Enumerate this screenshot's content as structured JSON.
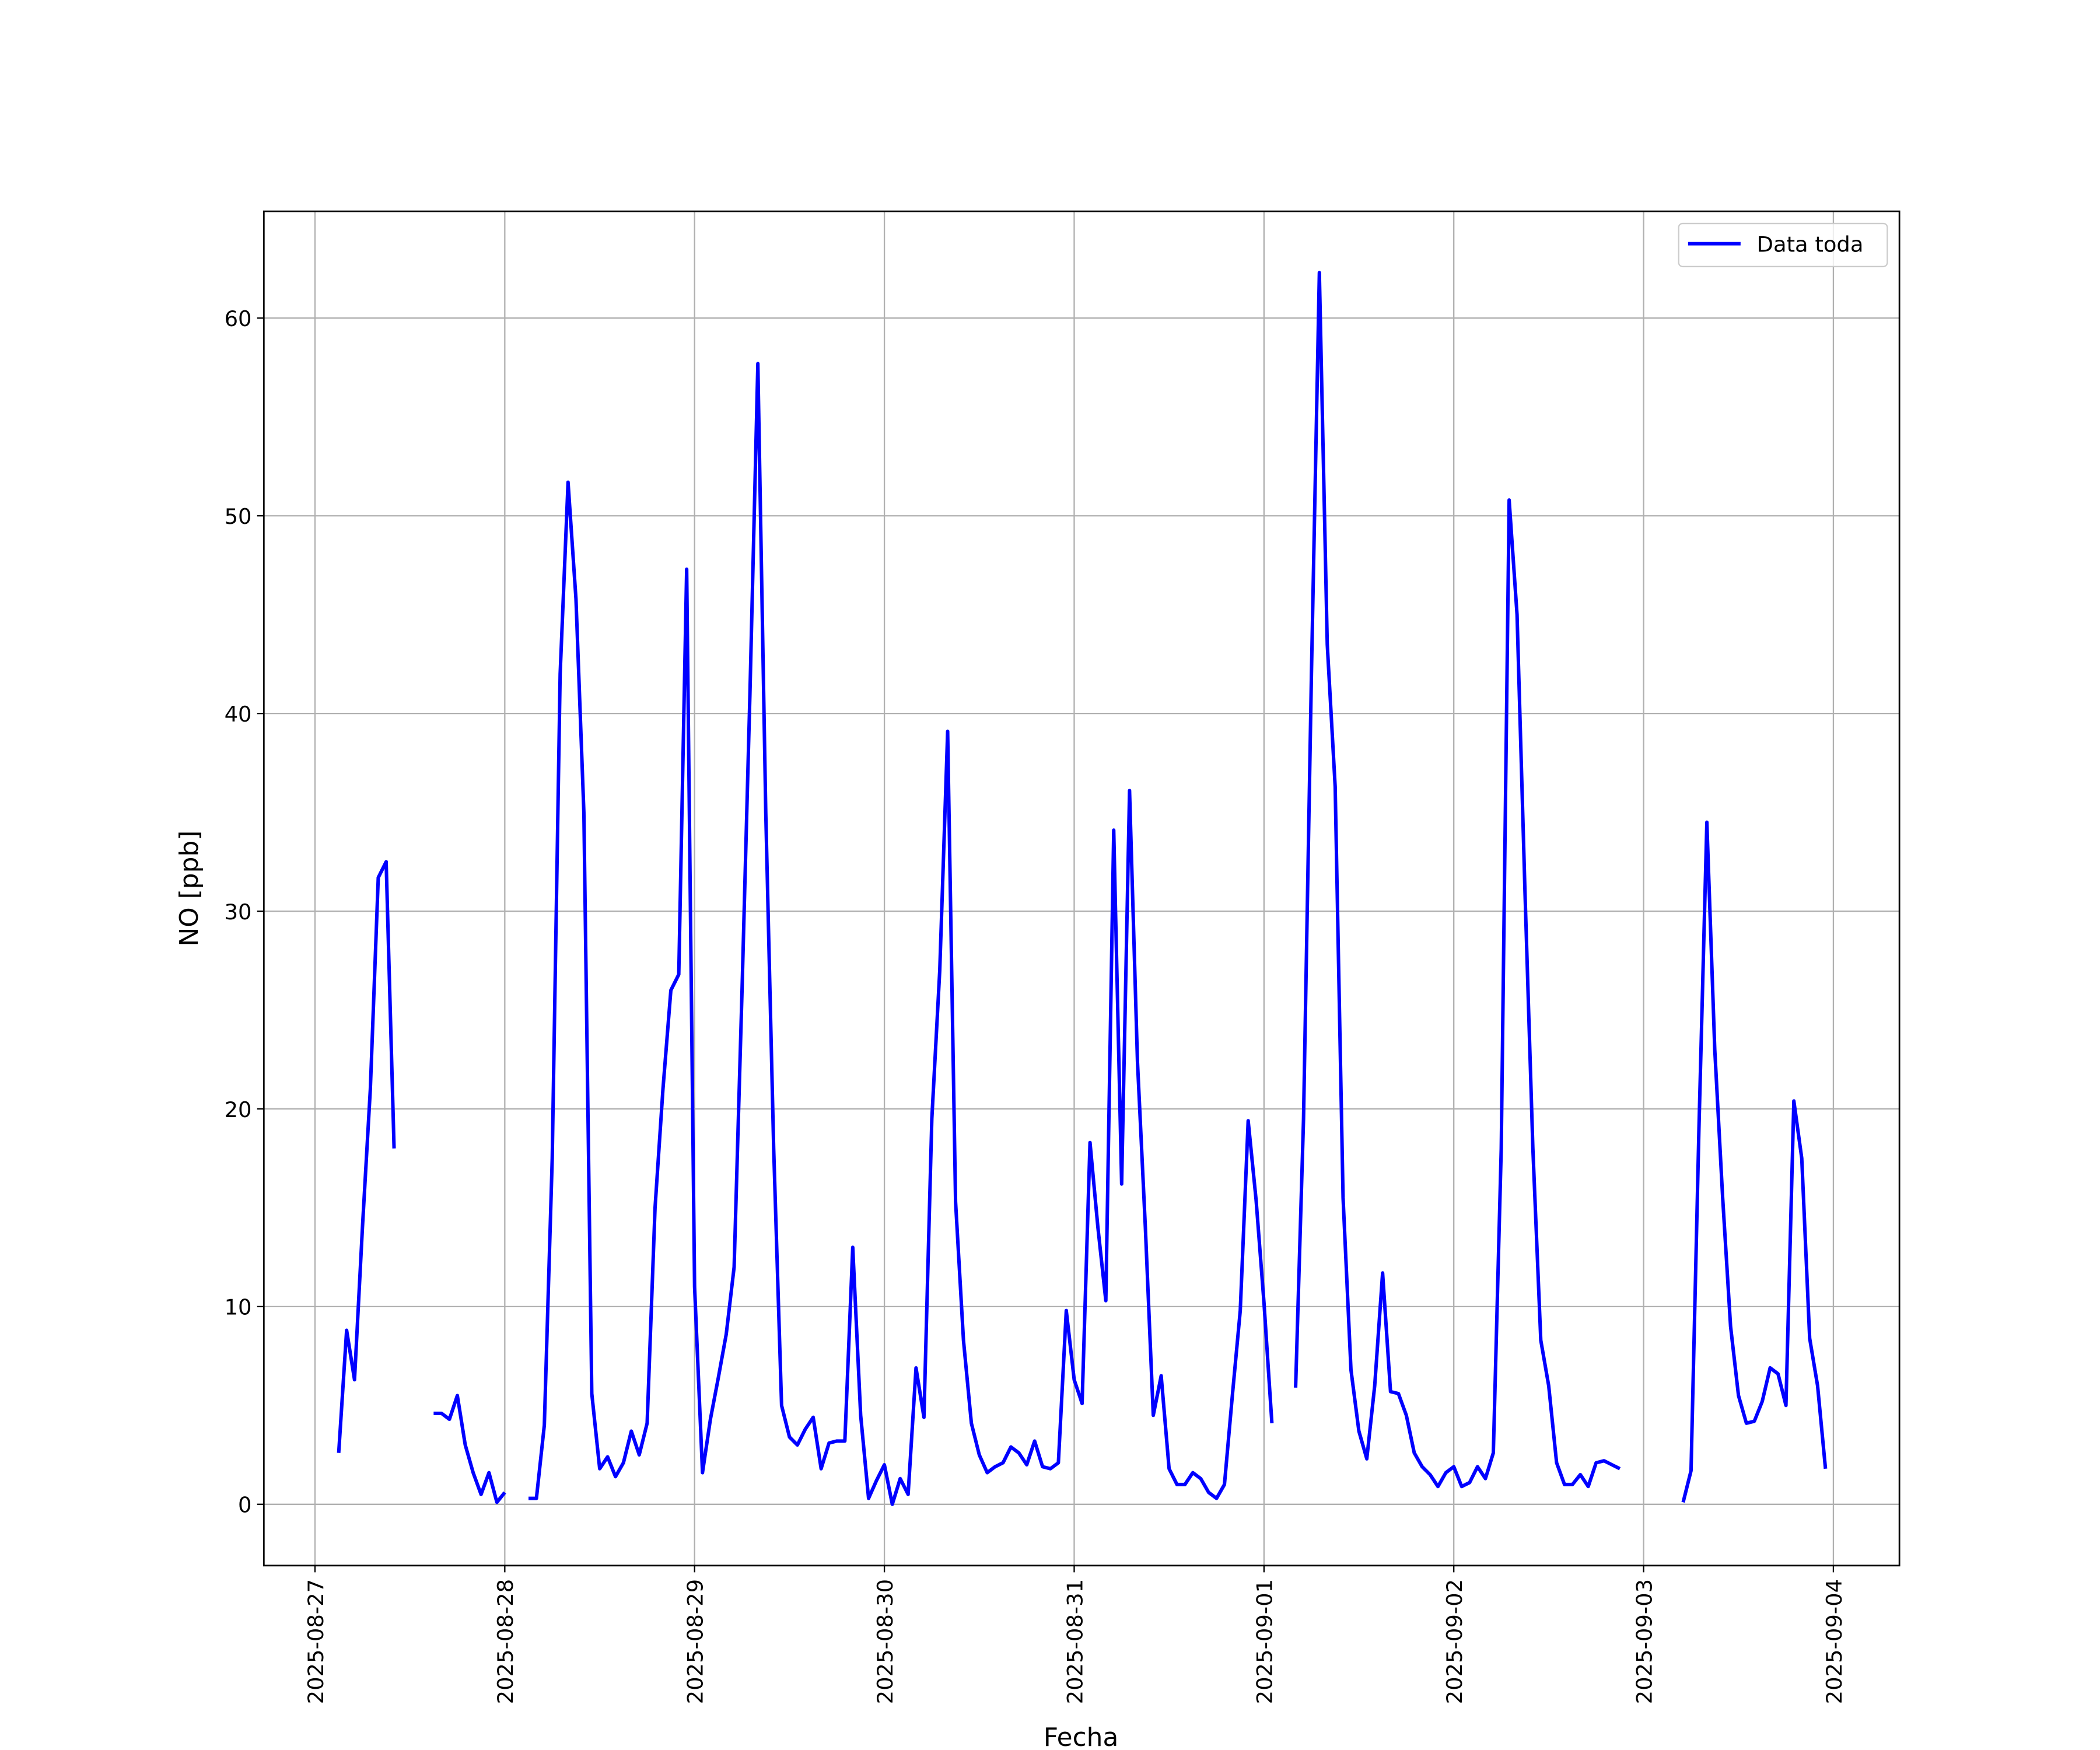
{
  "chart_data": {
    "type": "line",
    "xlabel": "Fecha",
    "ylabel": "NO [ppb]",
    "xlim": [
      "2025-08-26 17:32",
      "2025-09-04 08:21"
    ],
    "xticks": [
      "2025-08-27",
      "2025-08-28",
      "2025-08-29",
      "2025-08-30",
      "2025-08-31",
      "2025-09-01",
      "2025-09-02",
      "2025-09-03",
      "2025-09-04"
    ],
    "ylim": [
      -3.1,
      65.4
    ],
    "yticks": [
      0,
      10,
      20,
      30,
      40,
      50,
      60
    ],
    "grid": true,
    "legend": "upper right",
    "x": [
      "2025-08-27 03:00",
      "2025-08-27 04:00",
      "2025-08-27 05:00",
      "2025-08-27 06:00",
      "2025-08-27 07:00",
      "2025-08-27 08:00",
      "2025-08-27 09:00",
      "2025-08-27 10:00",
      "2025-08-27 11:00",
      "2025-08-27 15:00",
      "2025-08-27 16:00",
      "2025-08-27 17:00",
      "2025-08-27 18:00",
      "2025-08-27 19:00",
      "2025-08-27 20:00",
      "2025-08-27 21:00",
      "2025-08-27 22:00",
      "2025-08-27 23:00",
      "2025-08-28 00:00",
      "2025-08-28 01:00",
      "2025-08-28 03:00",
      "2025-08-28 04:00",
      "2025-08-28 05:00",
      "2025-08-28 06:00",
      "2025-08-28 07:00",
      "2025-08-28 08:00",
      "2025-08-28 09:00",
      "2025-08-28 10:00",
      "2025-08-28 11:00",
      "2025-08-28 12:00",
      "2025-08-28 13:00",
      "2025-08-28 14:00",
      "2025-08-28 15:00",
      "2025-08-28 16:00",
      "2025-08-28 17:00",
      "2025-08-28 18:00",
      "2025-08-28 19:00",
      "2025-08-28 20:00",
      "2025-08-28 21:00",
      "2025-08-28 22:00",
      "2025-08-28 23:00",
      "2025-08-29 00:00",
      "2025-08-29 01:00",
      "2025-08-29 02:00",
      "2025-08-29 03:00",
      "2025-08-29 04:00",
      "2025-08-29 05:00",
      "2025-08-29 06:00",
      "2025-08-29 07:00",
      "2025-08-29 08:00",
      "2025-08-29 09:00",
      "2025-08-29 10:00",
      "2025-08-29 11:00",
      "2025-08-29 12:00",
      "2025-08-29 13:00",
      "2025-08-29 14:00",
      "2025-08-29 15:00",
      "2025-08-29 16:00",
      "2025-08-29 17:00",
      "2025-08-29 18:00",
      "2025-08-29 19:00",
      "2025-08-29 20:00",
      "2025-08-29 21:00",
      "2025-08-29 22:00",
      "2025-08-29 23:00",
      "2025-08-30 00:00",
      "2025-08-30 01:00",
      "2025-08-30 02:00",
      "2025-08-30 03:00",
      "2025-08-30 04:00",
      "2025-08-30 05:00",
      "2025-08-30 06:00",
      "2025-08-30 07:00",
      "2025-08-30 08:00",
      "2025-08-30 09:00",
      "2025-08-30 10:00",
      "2025-08-30 11:00",
      "2025-08-30 12:00",
      "2025-08-30 13:00",
      "2025-08-30 14:00",
      "2025-08-30 15:00",
      "2025-08-30 16:00",
      "2025-08-30 17:00",
      "2025-08-30 18:00",
      "2025-08-30 19:00",
      "2025-08-30 20:00",
      "2025-08-30 21:00",
      "2025-08-30 22:00",
      "2025-08-30 23:00",
      "2025-08-31 00:00",
      "2025-08-31 01:00",
      "2025-08-31 02:00",
      "2025-08-31 03:00",
      "2025-08-31 04:00",
      "2025-08-31 05:00",
      "2025-08-31 06:00",
      "2025-08-31 07:00",
      "2025-08-31 08:00",
      "2025-08-31 09:00",
      "2025-08-31 10:00",
      "2025-08-31 11:00",
      "2025-08-31 12:00",
      "2025-08-31 13:00",
      "2025-08-31 14:00",
      "2025-08-31 15:00",
      "2025-08-31 16:00",
      "2025-08-31 17:00",
      "2025-08-31 18:00",
      "2025-08-31 19:00",
      "2025-08-31 20:00",
      "2025-08-31 21:00",
      "2025-08-31 22:00",
      "2025-08-31 23:00",
      "2025-09-01 00:00",
      "2025-09-01 01:00",
      "2025-09-01 02:00",
      "2025-09-01 04:00",
      "2025-09-01 05:00",
      "2025-09-01 06:00",
      "2025-09-01 07:00",
      "2025-09-01 08:00",
      "2025-09-01 09:00",
      "2025-09-01 10:00",
      "2025-09-01 11:00",
      "2025-09-01 12:00",
      "2025-09-01 13:00",
      "2025-09-01 14:00",
      "2025-09-01 15:00",
      "2025-09-01 16:00",
      "2025-09-01 17:00",
      "2025-09-01 18:00",
      "2025-09-01 19:00",
      "2025-09-01 20:00",
      "2025-09-01 21:00",
      "2025-09-01 22:00",
      "2025-09-01 23:00",
      "2025-09-02 00:00",
      "2025-09-02 01:00",
      "2025-09-02 02:00",
      "2025-09-02 03:00",
      "2025-09-02 04:00",
      "2025-09-02 05:00",
      "2025-09-02 06:00",
      "2025-09-02 07:00",
      "2025-09-02 08:00",
      "2025-09-02 09:00",
      "2025-09-02 10:00",
      "2025-09-02 11:00",
      "2025-09-02 12:00",
      "2025-09-02 13:00",
      "2025-09-02 14:00",
      "2025-09-02 15:00",
      "2025-09-02 16:00",
      "2025-09-02 17:00",
      "2025-09-02 18:00",
      "2025-09-02 19:00",
      "2025-09-02 20:00",
      "2025-09-02 21:00",
      "2025-09-02 22:00",
      "2025-09-03 05:00",
      "2025-09-03 06:00",
      "2025-09-03 07:00",
      "2025-09-03 08:00",
      "2025-09-03 09:00",
      "2025-09-03 10:00",
      "2025-09-03 11:00",
      "2025-09-03 12:00",
      "2025-09-03 13:00",
      "2025-09-03 14:00",
      "2025-09-03 15:00",
      "2025-09-03 16:00",
      "2025-09-03 17:00",
      "2025-09-03 18:00",
      "2025-09-03 19:00",
      "2025-09-03 20:00",
      "2025-09-03 21:00",
      "2025-09-03 22:00",
      "2025-09-03 23:00"
    ],
    "series": [
      {
        "name": "Data toda",
        "color": "#0000ff",
        "values": [
          2.6,
          8.8,
          6.3,
          14,
          21,
          31.7,
          32.5,
          18,
          null,
          4.6,
          4.6,
          4.3,
          5.5,
          3,
          1.6,
          0.5,
          1.6,
          0.1,
          0.6,
          null,
          0.3,
          0.3,
          4,
          17.5,
          42,
          51.7,
          45.8,
          35,
          5.6,
          1.8,
          2.4,
          1.4,
          2.1,
          3.7,
          2.5,
          4.1,
          15,
          21,
          26,
          26.8,
          47.3,
          11,
          1.6,
          4.3,
          6.4,
          8.6,
          12,
          26,
          41,
          57.7,
          35,
          18,
          5,
          3.4,
          3,
          3.8,
          4.4,
          1.8,
          3.1,
          3.2,
          3.2,
          13,
          4.5,
          0.3,
          1.2,
          2,
          0,
          1.3,
          0.5,
          6.9,
          4.4,
          19.5,
          27,
          39.1,
          15.3,
          8.3,
          4.1,
          2.5,
          1.6,
          1.9,
          2.1,
          2.9,
          2.6,
          2,
          3.2,
          1.9,
          1.8,
          2.1,
          9.8,
          6.3,
          5.1,
          18.3,
          14,
          10.3,
          34.1,
          16.2,
          36.1,
          22.4,
          14,
          4.5,
          6.5,
          1.8,
          1,
          1,
          1.6,
          1.3,
          0.6,
          0.3,
          1,
          5.5,
          9.8,
          19.4,
          15.4,
          10.2,
          4.1,
          null,
          5.9,
          19.5,
          42,
          62.3,
          43.5,
          36.3,
          15.5,
          6.8,
          3.7,
          2.3,
          6,
          11.7,
          5.7,
          5.6,
          4.5,
          2.6,
          1.9,
          1.5,
          0.9,
          1.6,
          1.9,
          0.9,
          1.1,
          1.9,
          1.3,
          2.6,
          18,
          50.8,
          45,
          31,
          18,
          8.3,
          6,
          2.1,
          1,
          1,
          1.5,
          0.9,
          2.1,
          2.2,
          2,
          1.8,
          null,
          0.1,
          1.7,
          19,
          34.5,
          23,
          15.5,
          9,
          5.5,
          4.1,
          4.2,
          5.2,
          6.9,
          6.6,
          5,
          20.4,
          17.5,
          8.4,
          6,
          1.8
        ]
      }
    ]
  }
}
